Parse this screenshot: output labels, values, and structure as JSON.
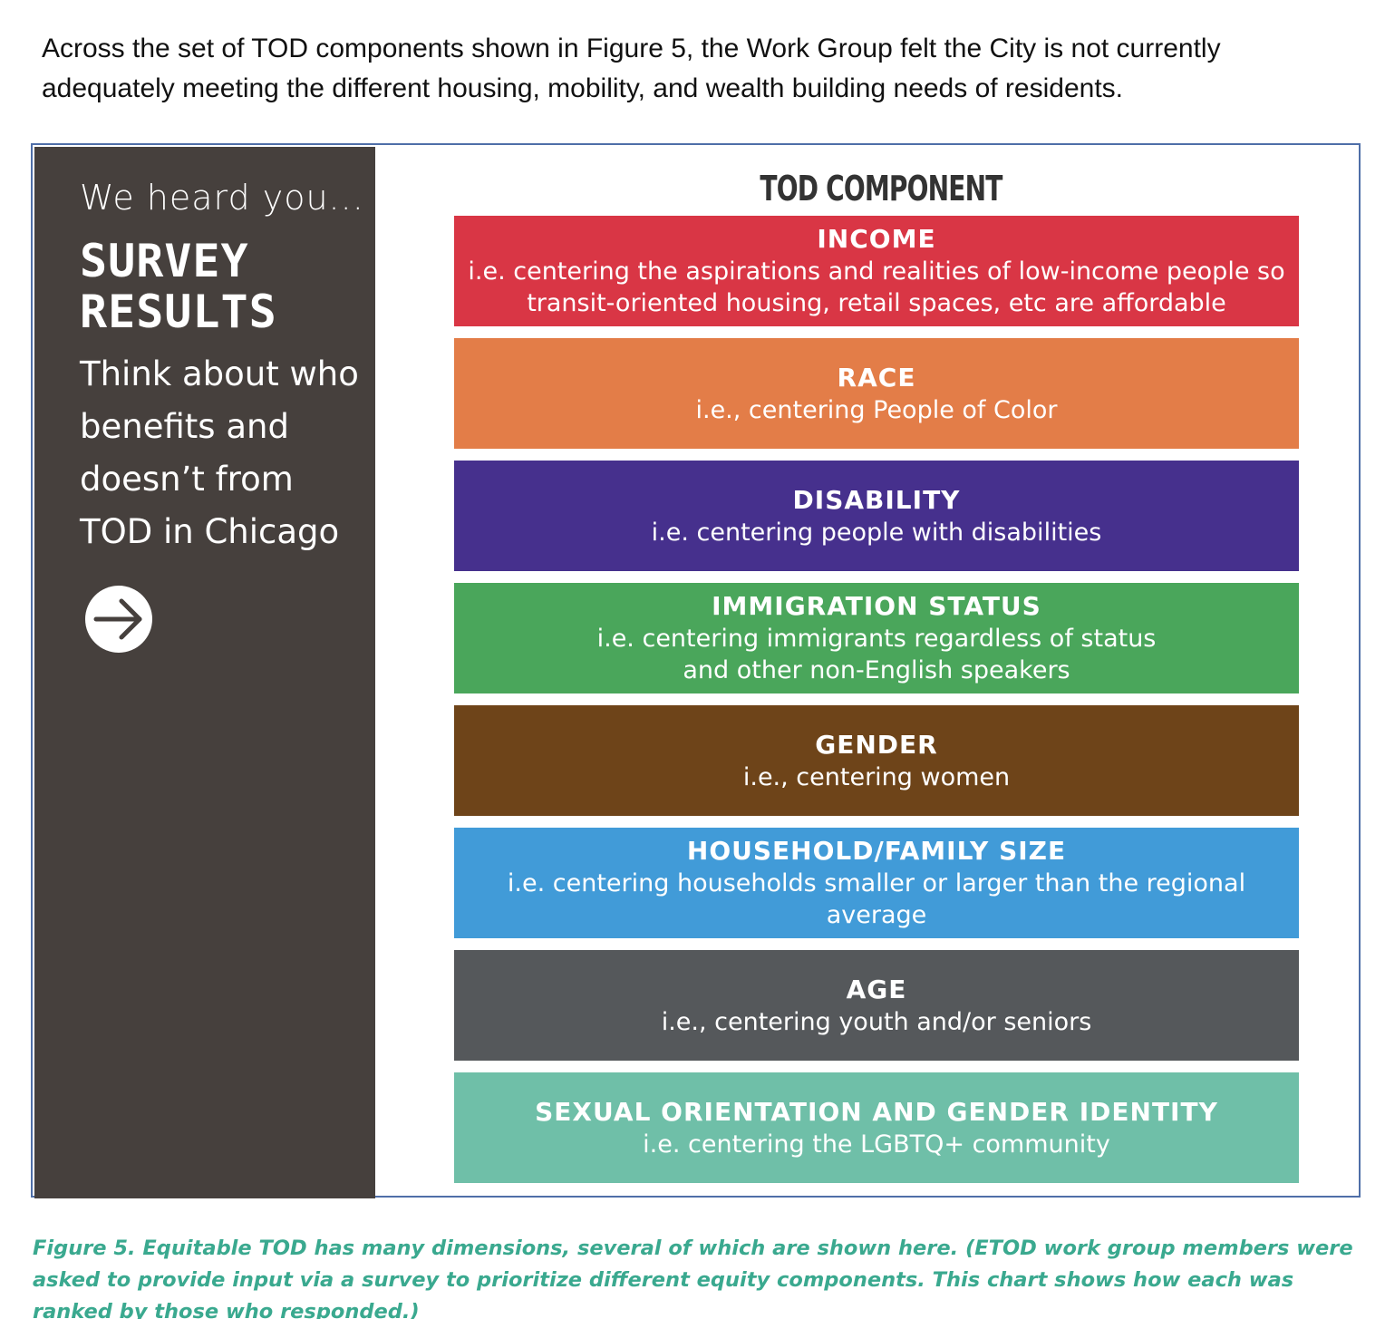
{
  "intro": {
    "text": "Across the set of TOD components shown in Figure 5, the Work Group felt the City is not currently adequately meeting the different housing, mobility, and wealth building needs of residents."
  },
  "panel": {
    "heard": "We heard you...",
    "survey_line1": "SURVEY",
    "survey_line2": "RESULTS",
    "think": "Think about who benefits and doesn’t from TOD in Chicago",
    "arrow_icon": "arrow-right-circle-icon"
  },
  "component_title": "TOD COMPONENT",
  "components": [
    {
      "name": "INCOME",
      "desc": "i.e. centering the aspirations and realities of low-income people so\ntransit-oriented housing, retail spaces, etc are affordable",
      "color": "#d93645"
    },
    {
      "name": "RACE",
      "desc": "i.e., centering People of Color",
      "color": "#e37d48"
    },
    {
      "name": "DISABILITY",
      "desc": "i.e. centering people with disabilities",
      "color": "#46308d"
    },
    {
      "name": "IMMIGRATION STATUS",
      "desc": "i.e. centering immigrants regardless of status\nand other non-English speakers",
      "color": "#4aa65b"
    },
    {
      "name": "GENDER",
      "desc": "i.e., centering women",
      "color": "#6e4419"
    },
    {
      "name": "HOUSEHOLD/FAMILY SIZE",
      "desc": "i.e. centering households smaller or larger than the regional average",
      "color": "#419bd8"
    },
    {
      "name": "AGE",
      "desc": "i.e., centering youth and/or seniors",
      "color": "#55585b"
    },
    {
      "name": "SEXUAL ORIENTATION AND GENDER IDENTITY",
      "desc": "i.e. centering the LGBTQ+ community",
      "color": "#6fbfa8"
    }
  ],
  "caption": "Figure 5. Equitable TOD has many dimensions, several of which are shown here. (ETOD work group members were asked to provide input via a survey to prioritize different equity components. This chart shows how each was ranked by those who responded.)"
}
